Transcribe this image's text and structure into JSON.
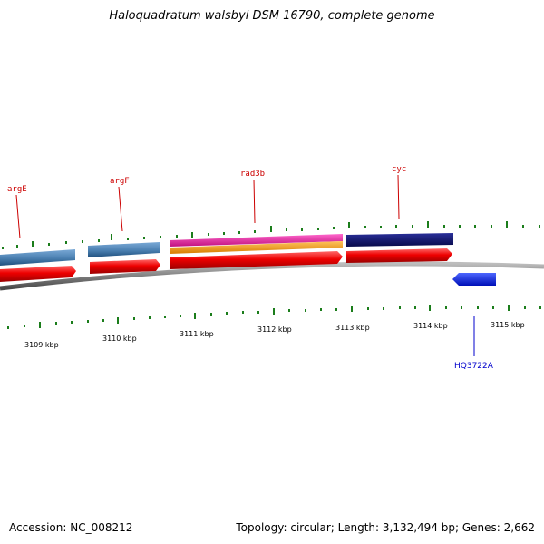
{
  "title": "Haloquadratum walsbyi DSM 16790, complete genome",
  "footer": {
    "accession": "Accession: NC_008212",
    "summary": "Topology: circular; Length: 3,132,494 bp; Genes: 2,662"
  },
  "gene_labels": [
    "argE",
    "argF",
    "rad3b",
    "cyc"
  ],
  "feature_labels": [
    "HQ3722A"
  ],
  "ticks": [
    "3109 kbp",
    "3110 kbp",
    "3111 kbp",
    "3112 kbp",
    "3113 kbp",
    "3114 kbp",
    "3115 kbp"
  ],
  "colors": {
    "gene_blue": "#4a7fb0",
    "cds_red": "#ee0000",
    "pink": "#e0119e",
    "orange": "#f39a12",
    "navy": "#0c116e",
    "feature_blue": "#0a1cf0",
    "backbone": "#7f7f7f",
    "tick_green": "#1b7d1b",
    "label_red": "#cc0000",
    "label_blue": "#0000cc"
  }
}
